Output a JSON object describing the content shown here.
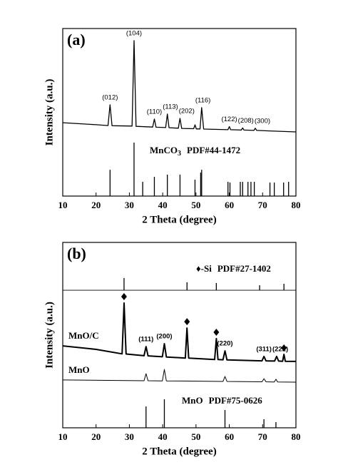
{
  "chart_data": [
    {
      "type": "line",
      "label": "(a)",
      "xlabel": "2 Theta (degree)",
      "ylabel": "Intensity (a.u.)",
      "xlim": [
        10,
        80
      ],
      "xticks": [
        10,
        20,
        30,
        40,
        50,
        60,
        70,
        80
      ],
      "ylim": [
        0,
        100
      ],
      "series": [
        {
          "color": "#000000",
          "x": [
            10,
            15,
            20,
            23.6,
            24.2,
            24.8,
            30.8,
            31.4,
            32.0,
            37.0,
            37.5,
            38.0,
            40.9,
            41.4,
            41.9,
            44.7,
            45.2,
            45.7,
            49.3,
            49.7,
            50.1,
            51.2,
            51.7,
            52.3,
            59.6,
            60.0,
            60.4,
            63.6,
            64.0,
            64.4,
            67.4,
            67.8,
            68.2,
            72,
            80
          ],
          "values": [
            43.8,
            43.2,
            42.6,
            42.1,
            54.5,
            42.0,
            41.8,
            92.8,
            41.6,
            41.2,
            46.0,
            41.1,
            40.9,
            49.0,
            40.8,
            40.5,
            46.4,
            40.4,
            40.2,
            42.5,
            40.1,
            40.1,
            52.8,
            40.0,
            39.6,
            41.5,
            39.6,
            39.4,
            40.7,
            39.4,
            39.2,
            40.5,
            39.2,
            38.9,
            38.3
          ]
        }
      ],
      "sticks": [
        {
          "color": "#000000",
          "base": 0,
          "label": {
            "formula": "MnCO",
            "subscript": "3",
            "card": "PDF#44-1472"
          },
          "x": [
            24.2,
            31.4,
            34.0,
            37.5,
            41.4,
            45.2,
            49.7,
            51.4,
            51.7,
            59.6,
            60.2,
            63.3,
            64.0,
            65.6,
            66.5,
            67.5,
            72.2,
            73.5,
            76.3,
            77.8
          ],
          "values": [
            15.7,
            31.9,
            8.5,
            11.5,
            12.8,
            12.8,
            9.8,
            14.0,
            15.7,
            8.5,
            8.1,
            8.5,
            8.5,
            8.5,
            8.5,
            8.5,
            8.1,
            8.1,
            8.1,
            8.5
          ]
        }
      ],
      "peak_labels": {
        "x": [
          24.2,
          31.4,
          37.5,
          41.4,
          45.2,
          51.7,
          60.0,
          64.0,
          67.8
        ],
        "labels": [
          "(012)",
          "(104)",
          "(110)",
          "(113)",
          "(202)",
          "(116)",
          "(122)",
          "(208)",
          "(300)"
        ]
      }
    },
    {
      "type": "line",
      "label": "(b)",
      "xlabel": "2 Theta (degree)",
      "ylabel": "Intensity (a.u.)",
      "xlim": [
        10,
        80
      ],
      "xticks": [
        10,
        20,
        30,
        40,
        50,
        60,
        70,
        80
      ],
      "ylim": [
        0,
        100
      ],
      "series": [
        {
          "name": "MnO/C",
          "color": "#000000",
          "width": 2,
          "x": [
            10,
            20,
            27.8,
            28.4,
            29.0,
            34.4,
            35.0,
            35.6,
            39.9,
            40.5,
            41.1,
            46.8,
            47.3,
            47.8,
            55.6,
            56.1,
            56.6,
            58.1,
            58.7,
            59.3,
            69.8,
            70.4,
            71.0,
            73.6,
            74.2,
            74.8,
            76.0,
            76.4,
            76.8,
            80
          ],
          "values": [
            44.2,
            42.3,
            39.9,
            67.3,
            39.8,
            38.9,
            43.8,
            38.8,
            38.3,
            45.4,
            38.2,
            37.6,
            53.8,
            37.6,
            36.8,
            48.1,
            36.8,
            36.7,
            41.5,
            36.6,
            36.1,
            38.5,
            36.1,
            36.0,
            38.5,
            36.0,
            35.9,
            39.6,
            35.9,
            35.8
          ],
          "markers_x": [
            28.4,
            47.3,
            56.1,
            76.4
          ]
        },
        {
          "name": "MnO",
          "color": "#000000",
          "width": 1,
          "x": [
            10,
            34.4,
            35.0,
            35.6,
            39.9,
            40.5,
            41.1,
            58.1,
            58.7,
            59.3,
            69.8,
            70.4,
            71.0,
            73.5,
            74.0,
            74.5,
            80
          ],
          "values": [
            25.8,
            25.4,
            29.2,
            25.4,
            25.3,
            31.5,
            25.3,
            25.0,
            27.7,
            25.0,
            24.8,
            26.5,
            24.8,
            24.7,
            26.2,
            24.7,
            24.6
          ]
        }
      ],
      "sticks": [
        {
          "color": "#000000",
          "base": 74.2,
          "baseline": true,
          "label": {
            "symbol": "♦",
            "text": "-Si",
            "card": "PDF#27-1402"
          },
          "x": [
            28.4,
            47.3,
            56.1,
            69.1,
            76.4
          ],
          "values": [
            80.8,
            78.5,
            78.1,
            76.9,
            77.7
          ]
        },
        {
          "color": "#000000",
          "base": 0,
          "label": {
            "formula": "MnO",
            "card": "PDF#75-0626"
          },
          "x": [
            35.0,
            40.5,
            58.7,
            70.4,
            74.0
          ],
          "values": [
            11.5,
            15.4,
            9.6,
            4.6,
            3.1
          ]
        }
      ],
      "peak_labels": {
        "x": [
          35.0,
          40.5,
          58.7,
          70.4,
          74.2
        ],
        "labels": [
          "(111)",
          "(200)",
          "(220)",
          "(311)",
          "(222)"
        ]
      }
    }
  ]
}
